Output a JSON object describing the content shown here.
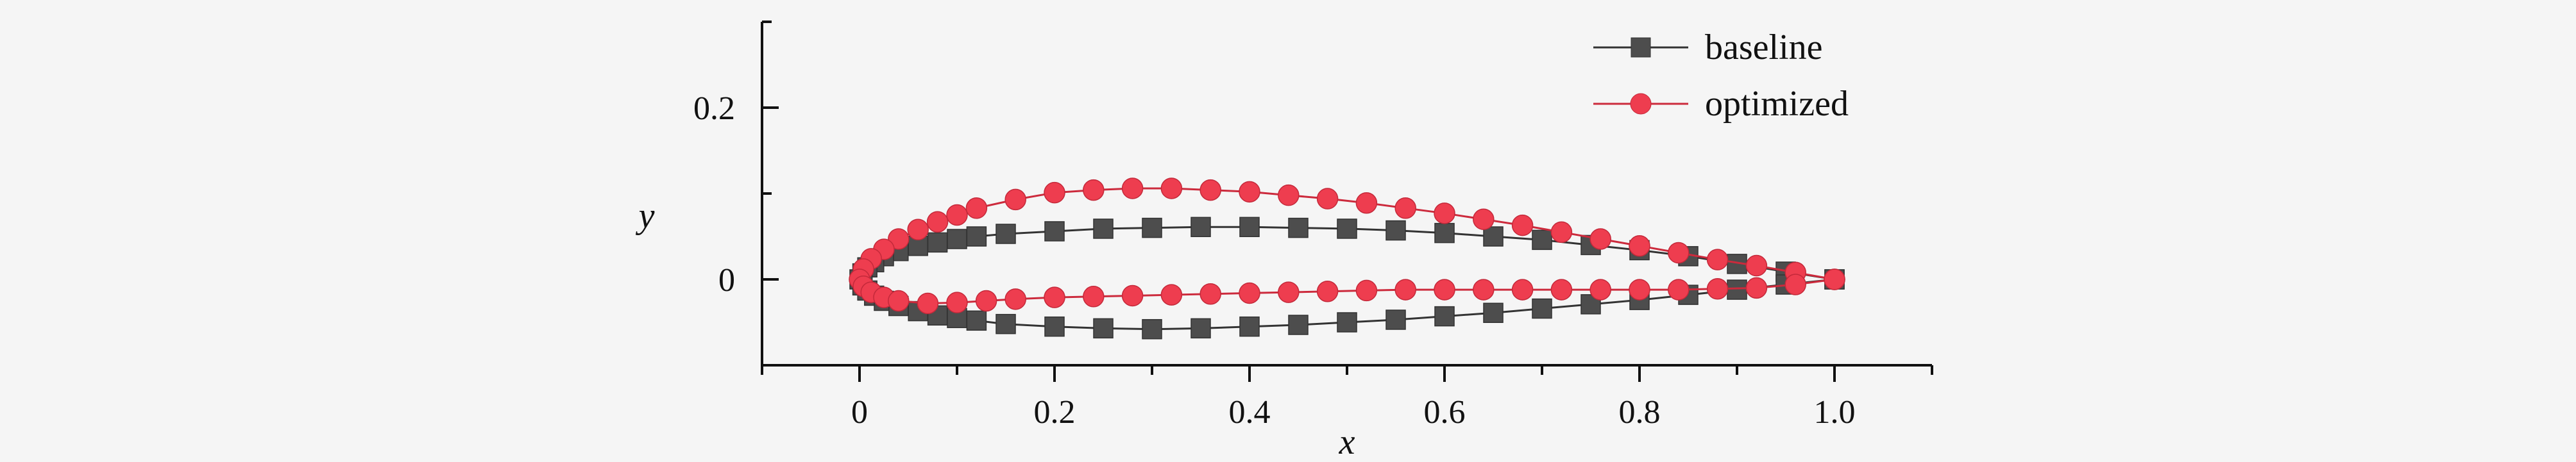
{
  "chart_data": {
    "type": "line",
    "title": "",
    "xlabel": "x",
    "ylabel": "y",
    "xlim": [
      -0.1,
      1.1
    ],
    "ylim": [
      -0.1,
      0.3
    ],
    "x_ticks": [
      0,
      0.2,
      0.4,
      0.6,
      0.8,
      1.0
    ],
    "x_tick_labels": [
      "0",
      "0.2",
      "0.4",
      "0.6",
      "0.8",
      "1.0"
    ],
    "y_ticks": [
      0,
      0.2
    ],
    "y_tick_labels": [
      "0",
      "0.2"
    ],
    "grid": false,
    "legend_position": "top-right",
    "series": [
      {
        "name": "baseline",
        "marker": "square",
        "color": "#4d4d4d",
        "line_color": "#333333",
        "x": [
          1.0,
          0.95,
          0.9,
          0.85,
          0.8,
          0.75,
          0.7,
          0.65,
          0.6,
          0.55,
          0.5,
          0.45,
          0.4,
          0.35,
          0.3,
          0.25,
          0.2,
          0.15,
          0.12,
          0.1,
          0.08,
          0.06,
          0.04,
          0.025,
          0.015,
          0.008,
          0.003,
          0.0,
          0.003,
          0.008,
          0.015,
          0.025,
          0.04,
          0.06,
          0.08,
          0.1,
          0.12,
          0.15,
          0.2,
          0.25,
          0.3,
          0.35,
          0.4,
          0.45,
          0.5,
          0.55,
          0.6,
          0.65,
          0.7,
          0.75,
          0.8,
          0.85,
          0.9,
          0.95,
          1.0
        ],
        "y": [
          0.0,
          0.009,
          0.018,
          0.027,
          0.034,
          0.04,
          0.046,
          0.05,
          0.054,
          0.057,
          0.059,
          0.06,
          0.061,
          0.061,
          0.06,
          0.059,
          0.056,
          0.053,
          0.05,
          0.047,
          0.043,
          0.039,
          0.033,
          0.027,
          0.02,
          0.014,
          0.007,
          0.0,
          -0.007,
          -0.013,
          -0.019,
          -0.025,
          -0.031,
          -0.037,
          -0.042,
          -0.045,
          -0.048,
          -0.052,
          -0.055,
          -0.057,
          -0.058,
          -0.057,
          -0.055,
          -0.053,
          -0.05,
          -0.047,
          -0.043,
          -0.039,
          -0.034,
          -0.029,
          -0.024,
          -0.018,
          -0.012,
          -0.006,
          0.0
        ]
      },
      {
        "name": "optimized",
        "marker": "circle",
        "color": "#ee3d4f",
        "line_color": "#cc2a3c",
        "x": [
          1.0,
          0.96,
          0.92,
          0.88,
          0.84,
          0.8,
          0.76,
          0.72,
          0.68,
          0.64,
          0.6,
          0.56,
          0.52,
          0.48,
          0.44,
          0.4,
          0.36,
          0.32,
          0.28,
          0.24,
          0.2,
          0.16,
          0.12,
          0.1,
          0.08,
          0.06,
          0.04,
          0.025,
          0.012,
          0.004,
          0.0,
          0.004,
          0.012,
          0.025,
          0.04,
          0.07,
          0.1,
          0.13,
          0.16,
          0.2,
          0.24,
          0.28,
          0.32,
          0.36,
          0.4,
          0.44,
          0.48,
          0.52,
          0.56,
          0.6,
          0.64,
          0.68,
          0.72,
          0.76,
          0.8,
          0.84,
          0.88,
          0.92,
          0.96,
          1.0
        ],
        "y": [
          0.0,
          0.008,
          0.016,
          0.023,
          0.031,
          0.039,
          0.047,
          0.055,
          0.063,
          0.07,
          0.077,
          0.083,
          0.089,
          0.094,
          0.098,
          0.102,
          0.104,
          0.106,
          0.106,
          0.104,
          0.101,
          0.093,
          0.083,
          0.075,
          0.067,
          0.058,
          0.047,
          0.035,
          0.024,
          0.012,
          0.0,
          -0.008,
          -0.015,
          -0.021,
          -0.025,
          -0.028,
          -0.027,
          -0.025,
          -0.023,
          -0.021,
          -0.02,
          -0.019,
          -0.018,
          -0.017,
          -0.016,
          -0.015,
          -0.014,
          -0.013,
          -0.012,
          -0.012,
          -0.012,
          -0.012,
          -0.012,
          -0.012,
          -0.012,
          -0.012,
          -0.011,
          -0.01,
          -0.006,
          0.0
        ]
      }
    ]
  }
}
